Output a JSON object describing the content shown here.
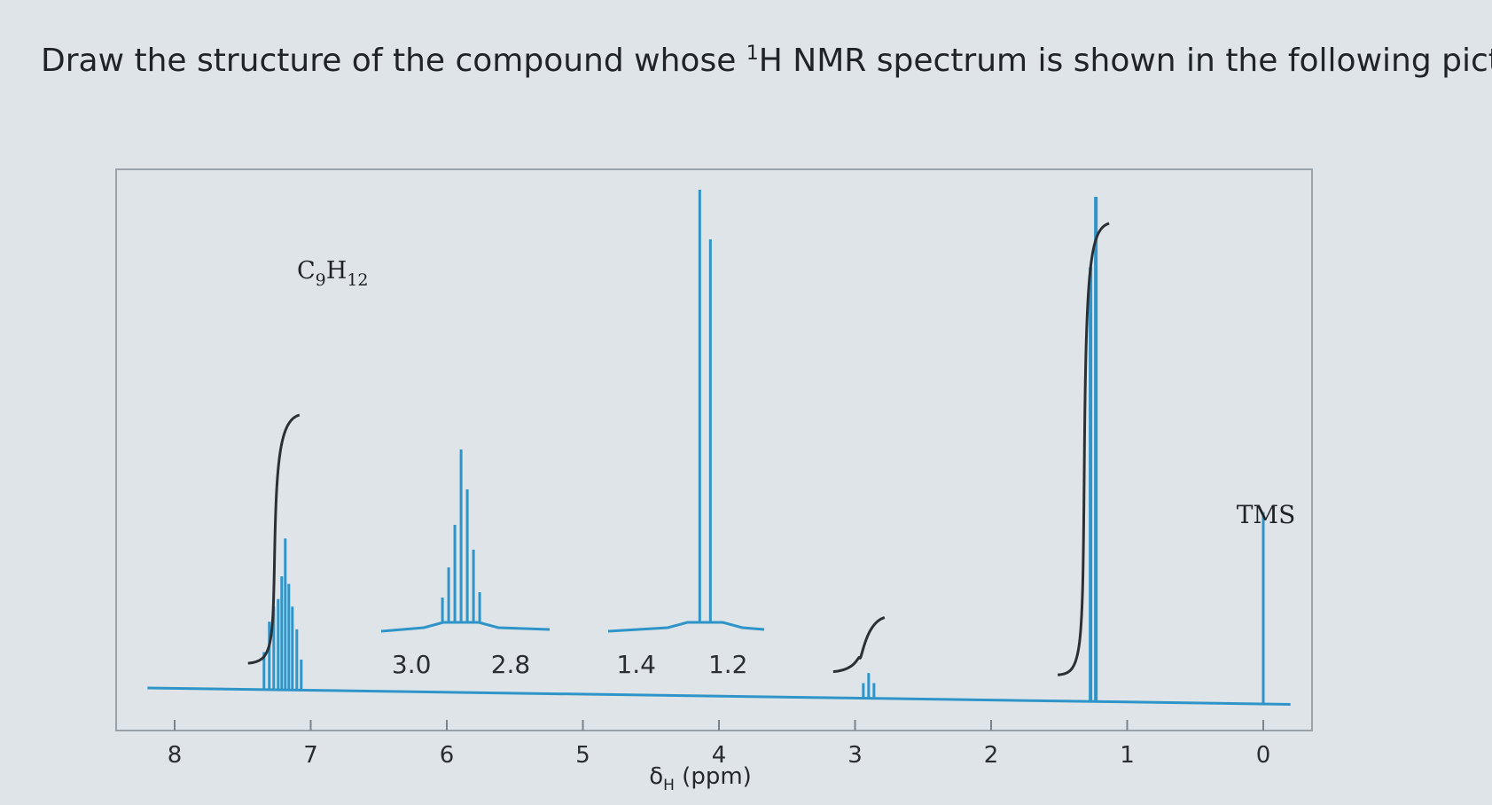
{
  "question": {
    "before": "Draw the structure of the compound whose ",
    "sup": "1",
    "after": "H NMR spectrum is shown in the following picture."
  },
  "colors": {
    "spectrum": "#2f95c9",
    "integral": "#2b3036",
    "frame": "#9aa3aa"
  },
  "chart_data": {
    "type": "line",
    "title": "",
    "formula": {
      "main": "C",
      "sub1": "9",
      "mid": "H",
      "sub2": "12"
    },
    "xlabel": {
      "symbol": "δ",
      "sub": "H",
      "unit": " (ppm)"
    },
    "ylabel": "",
    "xlim": [
      8.2,
      -0.2
    ],
    "x_ticks": [
      "8",
      "7",
      "6",
      "5",
      "4",
      "3",
      "2",
      "1",
      "0"
    ],
    "x_tick_values": [
      8,
      7,
      6,
      5,
      4,
      3,
      2,
      1,
      0
    ],
    "peaks": [
      {
        "shift_ppm": 7.2,
        "relative_height": 0.3,
        "multiplicity": "multiplet"
      },
      {
        "shift_ppm": 2.9,
        "relative_height": 0.05,
        "multiplicity": "septet"
      },
      {
        "shift_ppm": 1.25,
        "relative_height": 1.0,
        "multiplicity": "doublet"
      },
      {
        "shift_ppm": 0.0,
        "relative_height": 0.38,
        "label": "TMS"
      }
    ],
    "integral_steps": [
      {
        "shift_ppm": 7.2,
        "relative_height": 0.55
      },
      {
        "shift_ppm": 2.9,
        "relative_height": 0.12
      },
      {
        "shift_ppm": 1.25,
        "relative_height": 1.0
      }
    ],
    "insets": [
      {
        "ticks": [
          "3.0",
          "2.8"
        ],
        "tick_values": [
          3.0,
          2.8
        ],
        "peak_ppm": 2.9,
        "multiplicity": "septet"
      },
      {
        "ticks": [
          "1.4",
          "1.2"
        ],
        "tick_values": [
          1.4,
          1.2
        ],
        "peak_ppm": 1.25,
        "multiplicity": "doublet"
      }
    ],
    "annotations": [
      "TMS"
    ],
    "grid": false
  }
}
